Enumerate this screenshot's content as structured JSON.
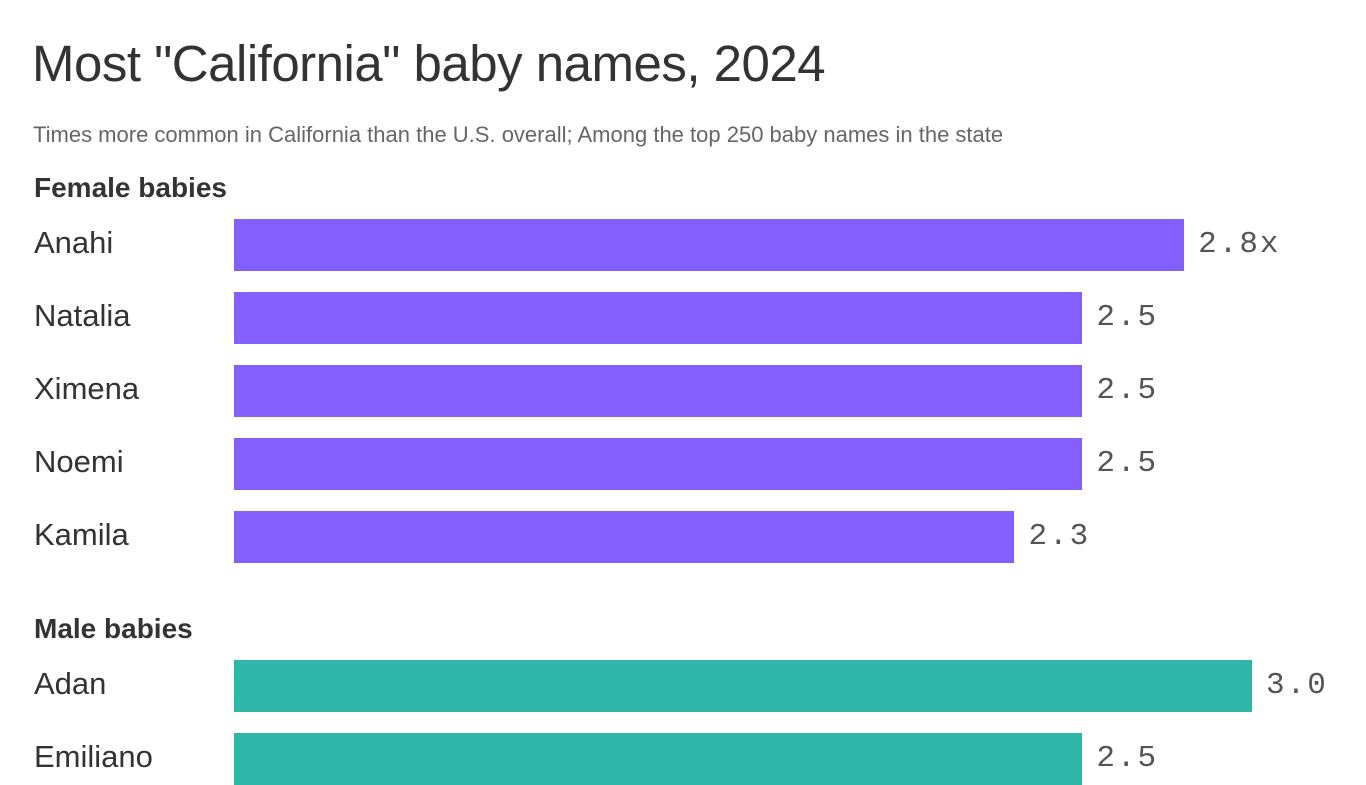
{
  "header": {
    "title": "Most \"California\" baby names, 2024",
    "subtitle": "Times more common in California than the U.S. overall; Among the top 250 baby names in the state"
  },
  "colors": {
    "female": "#845EFF",
    "male": "#2EB6A8"
  },
  "chart_data": {
    "type": "bar",
    "orientation": "horizontal",
    "title": "Most \"California\" baby names, 2024",
    "subtitle": "Times more common in California than the U.S. overall; Among the top 250 baby names in the state",
    "value_suffix_first": "x",
    "groups": [
      {
        "name": "Female babies",
        "color": "#845EFF",
        "categories": [
          "Anahi",
          "Natalia",
          "Ximena",
          "Noemi",
          "Kamila"
        ],
        "values": [
          2.8,
          2.5,
          2.5,
          2.5,
          2.3
        ],
        "labels": [
          "2.8x",
          "2.5",
          "2.5",
          "2.5",
          "2.3"
        ]
      },
      {
        "name": "Male babies",
        "color": "#2EB6A8",
        "categories": [
          "Adan",
          "Emiliano"
        ],
        "values": [
          3.0,
          2.5
        ],
        "labels": [
          "3.0",
          "2.5"
        ]
      }
    ]
  }
}
